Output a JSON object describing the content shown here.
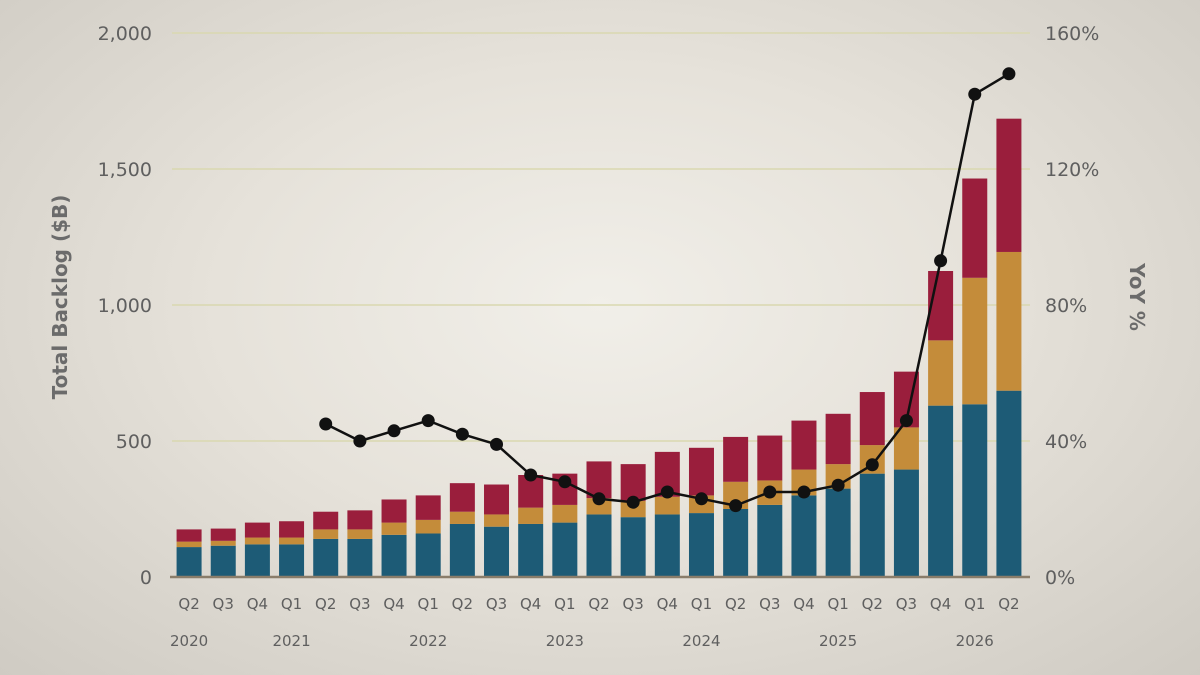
{
  "chart_data": {
    "type": "bar",
    "stacked": true,
    "title": "",
    "ylabel": "Total Backlog ($B)",
    "y2label": "YoY %",
    "ylim": [
      0,
      2000
    ],
    "y2lim": [
      0,
      160
    ],
    "yticks": [
      "0",
      "500",
      "1,000",
      "1,500",
      "2,000"
    ],
    "y2ticks": [
      "0%",
      "40%",
      "80%",
      "120%",
      "160%"
    ],
    "grid": true,
    "categories": [
      "Q2",
      "Q3",
      "Q4",
      "Q1",
      "Q2",
      "Q3",
      "Q4",
      "Q1",
      "Q2",
      "Q3",
      "Q4",
      "Q1",
      "Q2",
      "Q3",
      "Q4",
      "Q1",
      "Q2",
      "Q3",
      "Q4",
      "Q1",
      "Q2",
      "Q3",
      "Q4",
      "Q1",
      "Q2"
    ],
    "years": [
      {
        "label": "2020",
        "index": 0
      },
      {
        "label": "2021",
        "index": 3
      },
      {
        "label": "2022",
        "index": 7
      },
      {
        "label": "2023",
        "index": 11
      },
      {
        "label": "2024",
        "index": 15
      },
      {
        "label": "2025",
        "index": 19
      },
      {
        "label": "2026",
        "index": 23
      }
    ],
    "series": [
      {
        "values": [
          110,
          115,
          120,
          120,
          140,
          140,
          155,
          160,
          195,
          185,
          195,
          200,
          230,
          220,
          230,
          235,
          250,
          265,
          300,
          325,
          380,
          395,
          630,
          635,
          685
        ]
      },
      {
        "values": [
          20,
          18,
          25,
          25,
          35,
          35,
          45,
          50,
          45,
          45,
          60,
          65,
          60,
          60,
          65,
          65,
          100,
          90,
          95,
          90,
          105,
          155,
          240,
          465,
          510
        ]
      },
      {
        "values": [
          45,
          45,
          55,
          60,
          65,
          70,
          85,
          90,
          105,
          110,
          120,
          115,
          135,
          135,
          165,
          175,
          165,
          165,
          180,
          185,
          195,
          205,
          255,
          365,
          490
        ]
      }
    ],
    "line": {
      "values": [
        null,
        null,
        null,
        null,
        45,
        40,
        43,
        46,
        42,
        39,
        30,
        28,
        23,
        22,
        25,
        23,
        21,
        25,
        25,
        27,
        33,
        46,
        93,
        142,
        148
      ]
    },
    "colors": {
      "series": [
        "#1d5b76",
        "#c48c3a",
        "#9a1e3c"
      ],
      "line": "#111111",
      "grid": "#d9d8b0",
      "baseline": "#8a7d6a",
      "text": "#5f5f5f"
    }
  }
}
